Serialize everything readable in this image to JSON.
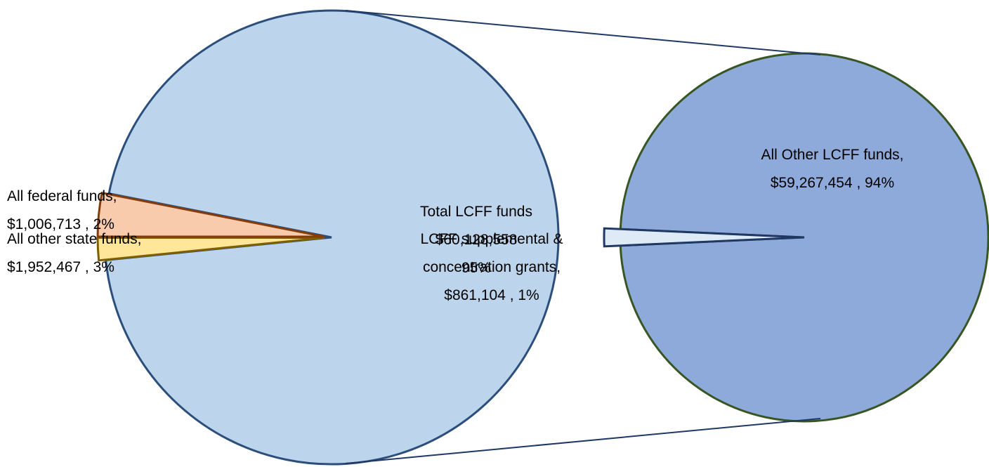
{
  "chart_data": {
    "type": "pie",
    "subtype": "pie-of-pie",
    "main_pie": {
      "slices": [
        {
          "key": "total_lcff",
          "line1": "Total LCFF funds",
          "line2": "$60,128,558",
          "line3": "95%",
          "value": 60128558,
          "percent": 95,
          "color": "#BDD5EC",
          "stroke": "#2B4E7A"
        },
        {
          "key": "federal",
          "line1": "All federal funds,",
          "line2": "$1,006,713 , 2%",
          "value": 1006713,
          "percent": 2,
          "color": "#FFE699",
          "stroke": "#7F6000"
        },
        {
          "key": "state",
          "line1": "All other state funds,",
          "line2": "$1,952,467 , 3%",
          "value": 1952467,
          "percent": 3,
          "color": "#F8CBAD",
          "stroke": "#843C0C"
        }
      ]
    },
    "secondary_pie": {
      "slices": [
        {
          "key": "other_lcff",
          "line1": "All Other LCFF funds,",
          "line2": "$59,267,454 , 94%",
          "value": 59267454,
          "percent": 94,
          "color": "#8EAADB",
          "stroke": "#375623"
        },
        {
          "key": "supplemental",
          "line1": "LCFF supplemental &",
          "line2": "concentration grants,",
          "line3": "$861,104 , 1%",
          "value": 861104,
          "percent": 1,
          "color": "#DEEBF7",
          "stroke": "#1F3864"
        }
      ]
    },
    "connector_color": "#1F3864",
    "title": "",
    "legend": "none"
  }
}
